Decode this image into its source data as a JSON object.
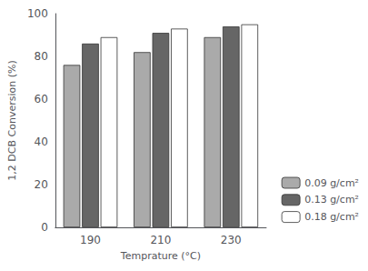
{
  "chart_data": {
    "type": "bar",
    "categories": [
      "190",
      "210",
      "230"
    ],
    "series": [
      {
        "name": "0.09 g/cm²",
        "color": "#aaaaaa",
        "values": [
          76,
          82,
          89
        ]
      },
      {
        "name": "0.13 g/cm²",
        "color": "#666666",
        "values": [
          86,
          91,
          94
        ]
      },
      {
        "name": "0.18 g/cm²",
        "color": "#ffffff",
        "values": [
          89,
          93,
          95
        ]
      }
    ],
    "xlabel": "Temprature (°C)",
    "ylabel": "1,2 DCB Conversion (%)",
    "ylim": [
      0,
      100
    ],
    "yticks": [
      0,
      20,
      40,
      60,
      80,
      100
    ],
    "grid": false,
    "legend": "lower right"
  }
}
